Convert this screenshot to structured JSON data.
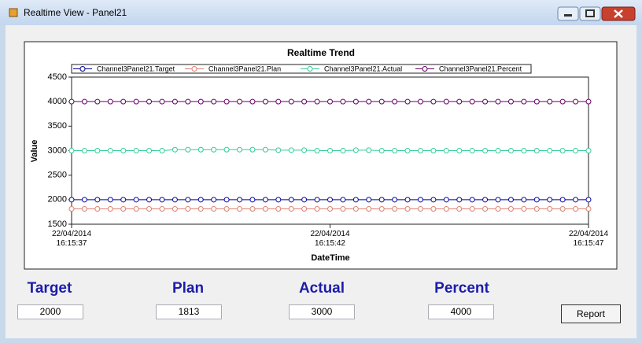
{
  "window": {
    "title": "Realtime View - Panel21"
  },
  "chart_data": {
    "type": "line",
    "title": "Realtime Trend",
    "x_label": "DateTime",
    "y_label": "Value",
    "x": [
      37,
      37.25,
      37.5,
      37.75,
      38,
      38.25,
      38.5,
      38.75,
      39,
      39.25,
      39.5,
      39.75,
      40,
      40.25,
      40.5,
      40.75,
      41,
      41.25,
      41.5,
      41.75,
      42,
      42.25,
      42.5,
      42.75,
      43,
      43.25,
      43.5,
      43.75,
      44,
      44.25,
      44.5,
      44.75,
      45,
      45.25,
      45.5,
      45.75,
      46,
      46.25,
      46.5,
      46.75,
      47
    ],
    "series": [
      {
        "name": "Channel3Panel21.Target",
        "color": "#000099",
        "values": [
          2000,
          2000,
          2000,
          2000,
          2000,
          2000,
          2000,
          2000,
          2000,
          2000,
          2000,
          2000,
          2000,
          2000,
          2000,
          2000,
          2000,
          2000,
          2000,
          2000,
          2000,
          2000,
          2000,
          2000,
          2000,
          2000,
          2000,
          2000,
          2000,
          2000,
          2000,
          2000,
          2000,
          2000,
          2000,
          2000,
          2000,
          2000,
          2000,
          2000,
          2000
        ]
      },
      {
        "name": "Channel3Panel21.Plan",
        "color": "#e08070",
        "values": [
          1813,
          1813,
          1813,
          1813,
          1813,
          1813,
          1813,
          1813,
          1813,
          1813,
          1813,
          1813,
          1813,
          1813,
          1813,
          1813,
          1813,
          1813,
          1813,
          1813,
          1813,
          1813,
          1813,
          1813,
          1813,
          1813,
          1813,
          1813,
          1813,
          1813,
          1813,
          1813,
          1813,
          1813,
          1813,
          1813,
          1813,
          1813,
          1813,
          1813,
          1813
        ]
      },
      {
        "name": "Channel3Panel21.Actual",
        "color": "#33cc99",
        "values": [
          3000,
          3000,
          3000,
          3000,
          3000,
          3000,
          3000,
          3000,
          3020,
          3020,
          3020,
          3020,
          3020,
          3020,
          3020,
          3020,
          3010,
          3010,
          3010,
          3000,
          3000,
          3000,
          3010,
          3010,
          3000,
          3000,
          3000,
          3000,
          3000,
          3000,
          3000,
          3000,
          3000,
          3000,
          3000,
          3000,
          3000,
          3000,
          3000,
          3000,
          3000
        ]
      },
      {
        "name": "Channel3Panel21.Percent",
        "color": "#660066",
        "values": [
          4000,
          4000,
          4000,
          4000,
          4000,
          4000,
          4000,
          4000,
          4000,
          4000,
          4000,
          4000,
          4000,
          4000,
          4000,
          4000,
          4000,
          4000,
          4000,
          4000,
          4000,
          4000,
          4000,
          4000,
          4000,
          4000,
          4000,
          4000,
          4000,
          4000,
          4000,
          4000,
          4000,
          4000,
          4000,
          4000,
          4000,
          4000,
          4000,
          4000,
          4000
        ]
      }
    ],
    "xlim": [
      37,
      47
    ],
    "xticks": [
      {
        "value": 37,
        "label": "22/04/2014\n16:15:37"
      },
      {
        "value": 42,
        "label": "22/04/2014\n16:15:42"
      },
      {
        "value": 47,
        "label": "22/04/2014\n16:15:47"
      }
    ],
    "ylim": [
      1500,
      4500
    ],
    "yticks": [
      1500,
      2000,
      2500,
      3000,
      3500,
      4000,
      4500
    ]
  },
  "fields": [
    {
      "label": "Target",
      "value": 2000
    },
    {
      "label": "Plan",
      "value": 1813
    },
    {
      "label": "Actual",
      "value": 3000
    },
    {
      "label": "Percent",
      "value": 4000
    }
  ],
  "report_button": "Report"
}
